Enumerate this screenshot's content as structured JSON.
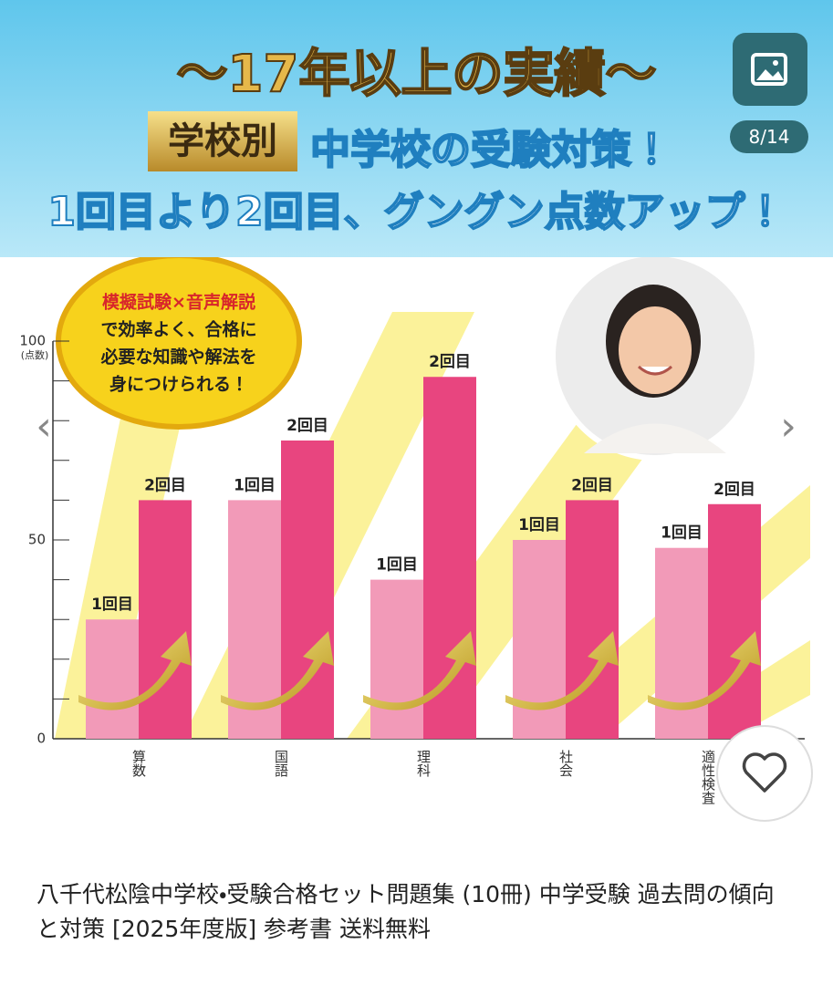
{
  "banner": {
    "headline": "〜17年以上の実績〜",
    "badge": "学校別",
    "subtitle": "中学校の受験対策！",
    "tagline": "1回目より2回目、グングン点数アップ！"
  },
  "callout": {
    "title": "模擬試験×音声解説",
    "lines": [
      "で効率よく、合格に",
      "必要な知識や解法を",
      "身につけられる！"
    ]
  },
  "chart_data": {
    "type": "bar",
    "categories": [
      "算数",
      "国語",
      "理科",
      "社会",
      "適性検査"
    ],
    "series": [
      {
        "name": "1回目",
        "color": "#f29ab8",
        "values": [
          30,
          60,
          40,
          50,
          48
        ]
      },
      {
        "name": "2回目",
        "color": "#e8457f",
        "values": [
          60,
          75,
          91,
          60,
          59
        ]
      }
    ],
    "ylim": [
      0,
      100
    ],
    "yticks": [
      0,
      50,
      100
    ],
    "yminorticks": [
      10,
      20,
      30,
      40,
      60,
      70,
      80,
      90
    ],
    "ylabel": "(点数)"
  },
  "gallery": {
    "counter": "8/14"
  },
  "product": {
    "title": "八千代松陰中学校・受験合格セット問題集 (10冊) 中学受験 過去問の傾向と対策 [2025年度版] 参考書 送料無料"
  }
}
